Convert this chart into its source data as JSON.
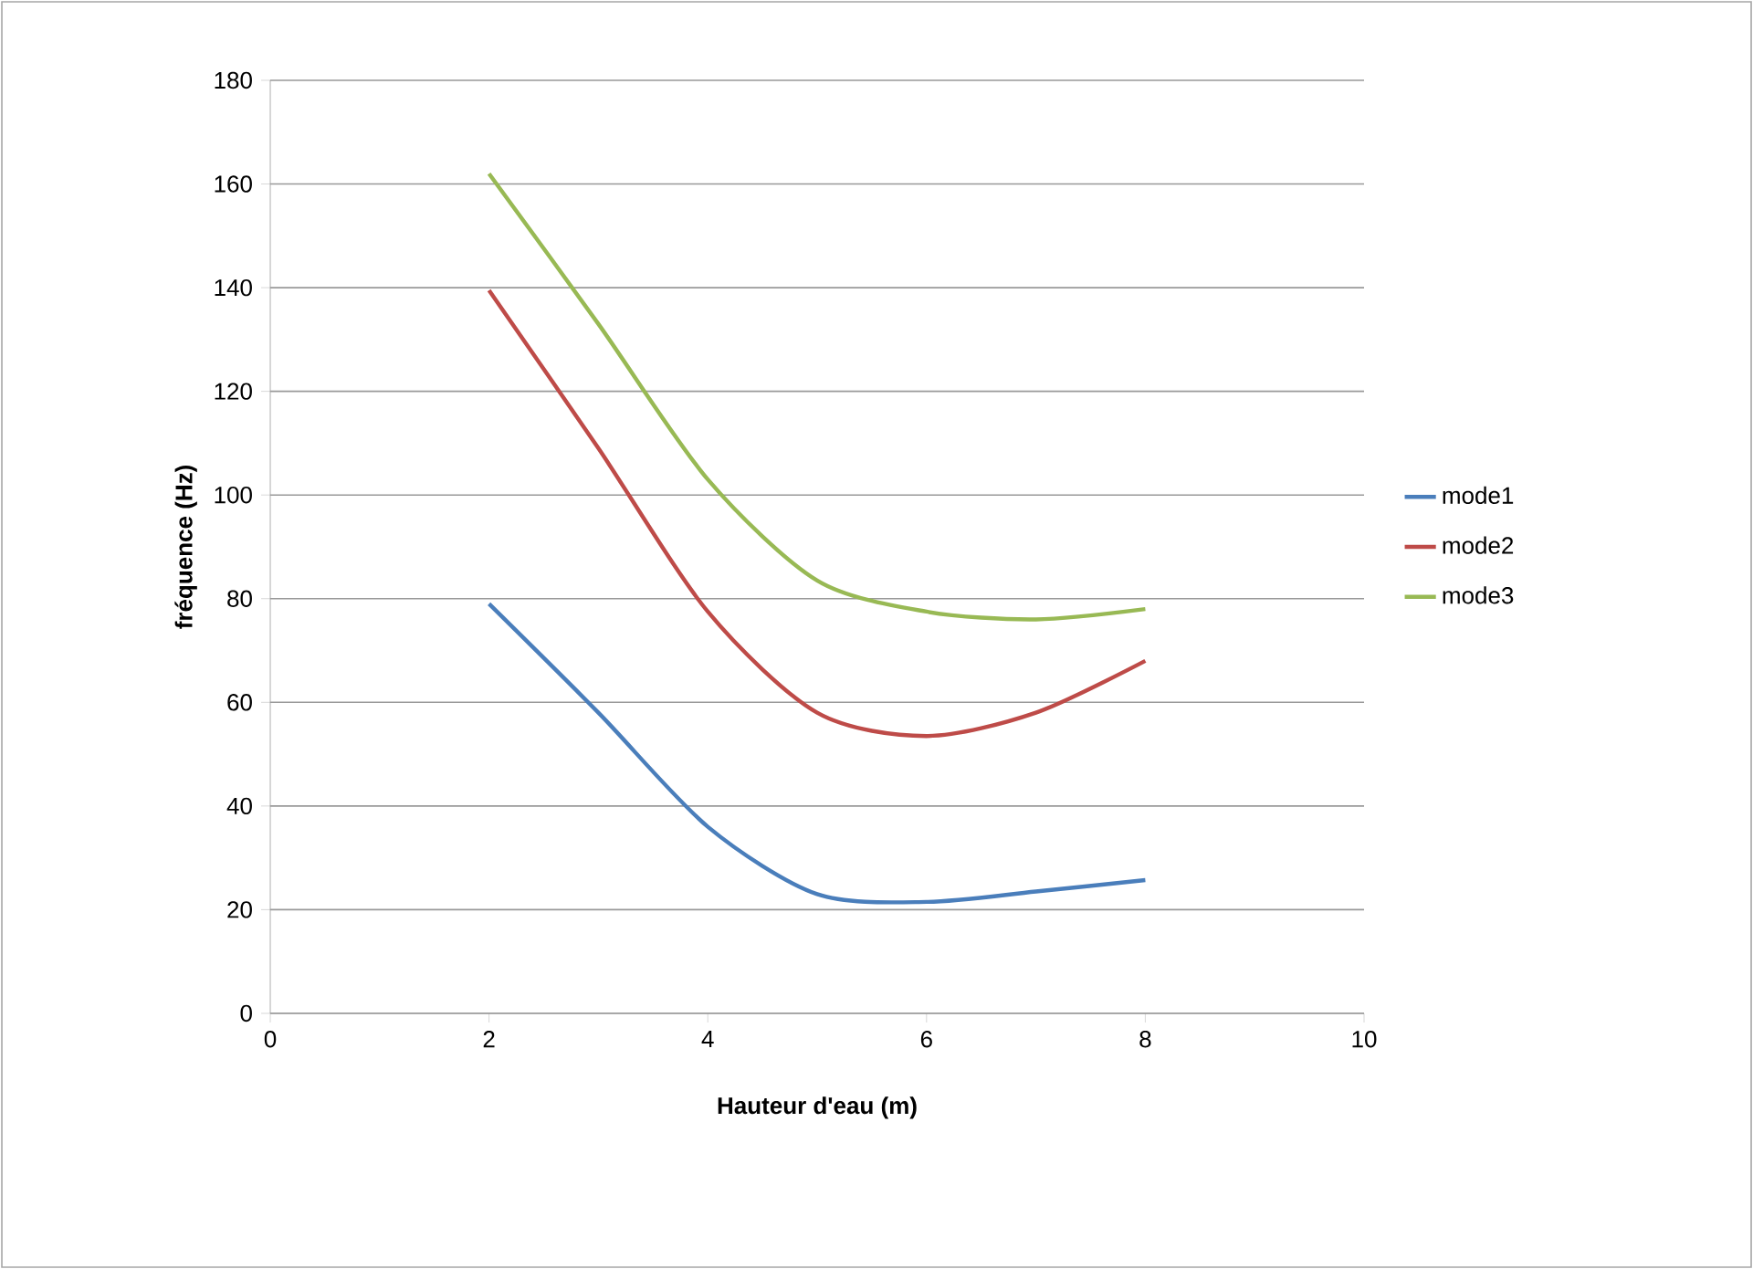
{
  "chart_data": {
    "type": "line",
    "xlabel": "Hauteur d'eau (m)",
    "ylabel": "fréquence (Hz)",
    "xlim": [
      0,
      10
    ],
    "xticks": [
      0,
      2,
      4,
      6,
      8,
      10
    ],
    "ylim": [
      0,
      180
    ],
    "yticks": [
      0,
      20,
      40,
      60,
      80,
      100,
      120,
      140,
      160,
      180
    ],
    "grid": "y",
    "legend": "right",
    "marker": "none",
    "line_style": "solid",
    "series": [
      {
        "name": "mode1",
        "color": "#4a7ebb",
        "x": [
          2,
          3,
          4,
          5,
          6,
          7,
          8
        ],
        "values": [
          79,
          58,
          36,
          23,
          21.5,
          23.5,
          25.7
        ]
      },
      {
        "name": "mode2",
        "color": "#be4b48",
        "x": [
          2,
          3,
          4,
          5,
          6,
          7,
          8
        ],
        "values": [
          139.5,
          109,
          77.5,
          58,
          53.5,
          58,
          68
        ]
      },
      {
        "name": "mode3",
        "color": "#98b954",
        "x": [
          2,
          3,
          4,
          5,
          6,
          7,
          8
        ],
        "values": [
          162,
          133,
          103,
          83.5,
          77.5,
          76,
          78
        ]
      }
    ]
  }
}
